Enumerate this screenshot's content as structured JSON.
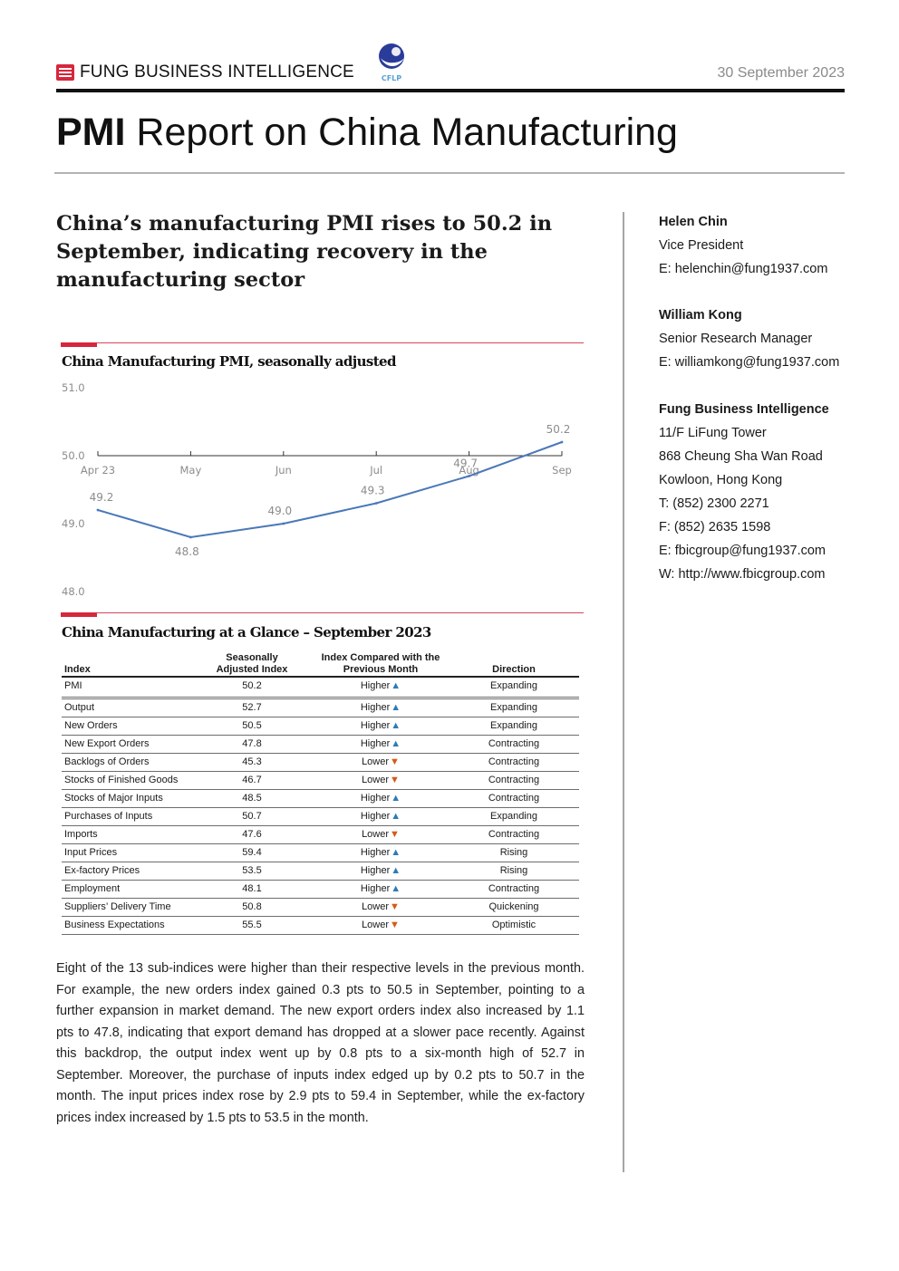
{
  "header": {
    "brand": "FUNG BUSINESS INTELLIGENCE",
    "partner_logo_text": "CFLP",
    "date": "30 September 2023",
    "title_bold": "PMI",
    "title_rest": " Report on China Manufacturing"
  },
  "headline": "China’s manufacturing PMI rises to 50.2 in September, indicating recovery in the manufacturing sector",
  "chart_section": {
    "title": "China Manufacturing PMI, seasonally adjusted"
  },
  "chart_data": {
    "type": "line",
    "title": "China Manufacturing PMI, seasonally adjusted",
    "categories": [
      "Apr 23",
      "May",
      "Jun",
      "Jul",
      "Aug",
      "Sep"
    ],
    "series": [
      {
        "values": [
          49.2,
          48.8,
          49.0,
          49.3,
          49.7,
          50.2
        ],
        "color": "#4a78b8"
      }
    ],
    "data_labels": [
      "49.2",
      "48.8",
      "49.0",
      "49.3",
      "49.7",
      "50.2"
    ],
    "ylim": [
      48.0,
      51.0
    ],
    "yticks": [
      "51.0",
      "50.0",
      "49.0",
      "48.0"
    ],
    "x_axis_crosses_at": 50.0,
    "grid": false,
    "xlabel": "",
    "ylabel": ""
  },
  "table_section": {
    "title": "China Manufacturing at a Glance – September 2023",
    "headers": {
      "index": "Index",
      "sa_line1": "Seasonally",
      "sa_line2": "Adjusted Index",
      "cmp_line1": "Index Compared with the",
      "cmp_line2": "Previous Month",
      "direction": "Direction"
    },
    "rows": [
      {
        "index": "PMI",
        "value": "50.2",
        "compare": "Higher",
        "arrow": "▲",
        "dir": "up",
        "direction": "Expanding"
      },
      {
        "index": "Output",
        "value": "52.7",
        "compare": "Higher",
        "arrow": "▲",
        "dir": "up",
        "direction": "Expanding"
      },
      {
        "index": "New Orders",
        "value": "50.5",
        "compare": "Higher",
        "arrow": "▲",
        "dir": "up",
        "direction": "Expanding"
      },
      {
        "index": "New Export Orders",
        "value": "47.8",
        "compare": "Higher",
        "arrow": "▲",
        "dir": "up",
        "direction": "Contracting"
      },
      {
        "index": "Backlogs of Orders",
        "value": "45.3",
        "compare": "Lower",
        "arrow": "▼",
        "dir": "down",
        "direction": "Contracting"
      },
      {
        "index": "Stocks of Finished Goods",
        "value": "46.7",
        "compare": "Lower",
        "arrow": "▼",
        "dir": "down",
        "direction": "Contracting"
      },
      {
        "index": "Stocks of Major Inputs",
        "value": "48.5",
        "compare": "Higher",
        "arrow": "▲",
        "dir": "up",
        "direction": "Contracting"
      },
      {
        "index": "Purchases of Inputs",
        "value": "50.7",
        "compare": "Higher",
        "arrow": "▲",
        "dir": "up",
        "direction": "Expanding"
      },
      {
        "index": "Imports",
        "value": "47.6",
        "compare": "Lower",
        "arrow": "▼",
        "dir": "down",
        "direction": "Contracting"
      },
      {
        "index": "Input Prices",
        "value": "59.4",
        "compare": "Higher",
        "arrow": "▲",
        "dir": "up",
        "direction": "Rising"
      },
      {
        "index": "Ex-factory Prices",
        "value": "53.5",
        "compare": "Higher",
        "arrow": "▲",
        "dir": "up",
        "direction": "Rising"
      },
      {
        "index": "Employment",
        "value": "48.1",
        "compare": "Higher",
        "arrow": "▲",
        "dir": "up",
        "direction": "Contracting"
      },
      {
        "index": "Suppliers’ Delivery Time",
        "value": "50.8",
        "compare": "Lower",
        "arrow": "▼",
        "dir": "down",
        "direction": "Quickening"
      },
      {
        "index": "Business Expectations",
        "value": "55.5",
        "compare": "Lower",
        "arrow": "▼",
        "dir": "down",
        "direction": "Optimistic"
      }
    ]
  },
  "paragraph": "Eight of the 13 sub-indices were higher than their respective levels in the previous month. For example, the new orders index gained 0.3 pts to 50.5 in September, pointing to a further expansion in market demand. The new export orders index also increased by 1.1 pts to 47.8, indicating that export demand has dropped at a slower pace recently. Against this backdrop, the output index went up by 0.8 pts to a six-month high of 52.7 in September. Moreover, the purchase of inputs index edged up by 0.2 pts to 50.7 in the month. The input prices index rose by 2.9 pts to 59.4 in September, while the ex-factory prices index increased by 1.5 pts to 53.5 in the month.",
  "contacts": {
    "p1": {
      "name": "Helen Chin",
      "role": "Vice President",
      "email": "E: helenchin@fung1937.com"
    },
    "p2": {
      "name": "William Kong",
      "role": "Senior Research Manager",
      "email": "E: williamkong@fung1937.com"
    },
    "org": {
      "name": "Fung Business Intelligence",
      "addr1": "11/F LiFung Tower",
      "addr2": "868 Cheung Sha Wan Road",
      "addr3": "Kowloon, Hong Kong",
      "tel": "T: (852) 2300 2271",
      "fax": "F: (852) 2635 1598",
      "email": "E: fbicgroup@fung1937.com",
      "web": "W: http://www.fbicgroup.com"
    }
  },
  "colors": {
    "accent_red": "#d7263d",
    "line_blue": "#4a78b8",
    "arrow_up": "#2e7bb5",
    "arrow_down": "#d65a16"
  }
}
